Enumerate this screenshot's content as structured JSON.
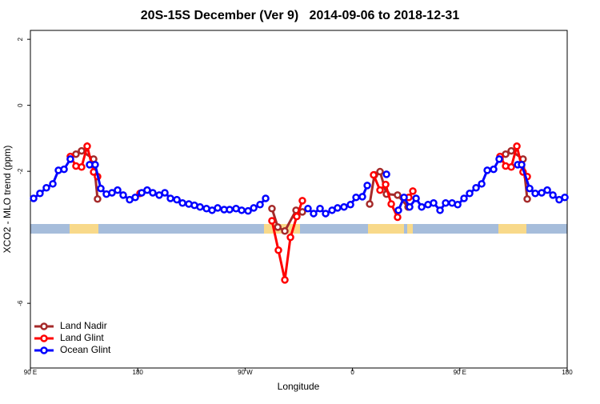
{
  "chart_data": {
    "type": "line",
    "title": "20S-15S December (Ver 9)   2014-09-06 to 2018-12-31",
    "xlabel": "Longitude",
    "ylabel": "XCO2 - MLO trend (ppm)",
    "xlim": [
      90,
      540
    ],
    "ylim": [
      -7.96,
      2.27
    ],
    "xticks": [
      {
        "value": 90,
        "label": "90 E"
      },
      180,
      {
        "value": 270,
        "label": "90 W"
      },
      {
        "value": 360,
        "label": "0"
      },
      {
        "value": 450,
        "label": "90 E"
      },
      {
        "value": 540,
        "label": "180"
      }
    ],
    "yticks": [
      -6,
      -2,
      0,
      2
    ],
    "legend": "bottomleft",
    "series": [
      {
        "name": "Land Nadir",
        "color": "#a52a2a",
        "x": [
          123.5,
          128.2,
          132.9,
          143.0,
          146.3,
          null,
          292.5,
          297.4,
          303.3,
          312.7,
          318.0,
          null,
          374.4,
          378.4,
          383.1,
          388.5,
          397.8,
          406.6,
          null,
          483.7,
          488.4,
          493.1,
          503.0,
          506.5
        ],
        "values": [
          -1.63,
          -1.48,
          -1.38,
          -1.63,
          -2.84,
          null,
          -3.13,
          -3.69,
          -3.81,
          -3.18,
          -3.23,
          null,
          -2.99,
          -2.11,
          -2.01,
          -2.69,
          -2.72,
          -3.08,
          null,
          -1.63,
          -1.48,
          -1.38,
          -1.63,
          -2.84
        ]
      },
      {
        "name": "Land Glint",
        "color": "#ff0000",
        "x": [
          123.5,
          128.2,
          132.9,
          137.6,
          143.0,
          146.3,
          null,
          181.9,
          null,
          292.5,
          297.9,
          303.3,
          308.0,
          313.3,
          318.0,
          null,
          377.7,
          383.1,
          387.8,
          392.5,
          397.8,
          null,
          407.2,
          410.6,
          null,
          483.7,
          488.4,
          493.1,
          497.8,
          503.0,
          506.5
        ],
        "values": [
          -1.55,
          -1.84,
          -1.87,
          -1.24,
          -2.02,
          -2.16,
          null,
          -2.67,
          null,
          -3.5,
          -4.39,
          -5.29,
          -4.0,
          -3.37,
          -2.89,
          null,
          -2.11,
          -2.57,
          -2.4,
          -2.99,
          -3.39,
          null,
          -2.79,
          -2.6,
          null,
          -1.55,
          -1.84,
          -1.87,
          -1.24,
          -2.02,
          -2.16
        ]
      },
      {
        "name": "Ocean Glint",
        "color": "#0000ff",
        "x": [
          92.7,
          98.0,
          103.4,
          108.8,
          113.5,
          118.2,
          123.5,
          null,
          139.6,
          144.3,
          149.0,
          153.7,
          158.4,
          163.1,
          167.8,
          173.2,
          177.9,
          183.3,
          187.9,
          192.6,
          198.0,
          202.7,
          207.4,
          212.8,
          217.5,
          222.8,
          227.5,
          232.2,
          237.6,
          242.3,
          247.0,
          252.4,
          257.0,
          262.4,
          267.1,
          272.5,
          277.2,
          282.5,
          287.2,
          null,
          322.7,
          327.4,
          332.8,
          337.5,
          342.9,
          347.5,
          352.9,
          358.3,
          363.0,
          368.3,
          372.4,
          null,
          388.5,
          null,
          398.5,
          403.2,
          407.9,
          413.3,
          418.0,
          423.3,
          428.0,
          433.4,
          438.1,
          443.5,
          448.2,
          453.5,
          458.2,
          463.6,
          468.3,
          473.0,
          478.3,
          483.0,
          null,
          498.5,
          501.8,
          508.5,
          513.2,
          518.6,
          523.3,
          528.0,
          533.3,
          538.0
        ],
        "values": [
          -2.82,
          -2.67,
          -2.5,
          -2.38,
          -1.97,
          -1.94,
          -1.63,
          null,
          -1.8,
          -1.8,
          -2.52,
          -2.69,
          -2.65,
          -2.57,
          -2.72,
          -2.86,
          -2.79,
          -2.65,
          -2.57,
          -2.65,
          -2.72,
          -2.65,
          -2.82,
          -2.86,
          -2.96,
          -2.99,
          -3.03,
          -3.08,
          -3.13,
          -3.18,
          -3.11,
          -3.16,
          -3.16,
          -3.13,
          -3.18,
          -3.2,
          -3.11,
          -3.01,
          -2.82,
          null,
          -3.13,
          -3.28,
          -3.13,
          -3.28,
          -3.18,
          -3.11,
          -3.08,
          -3.01,
          -2.79,
          -2.77,
          -2.43,
          null,
          -2.09,
          null,
          -3.18,
          -2.79,
          -3.08,
          -2.82,
          -3.08,
          -3.01,
          -2.96,
          -3.18,
          -2.96,
          -2.96,
          -3.01,
          -2.82,
          -2.67,
          -2.5,
          -2.38,
          -1.97,
          -1.94,
          -1.63,
          null,
          -1.8,
          -1.8,
          -2.52,
          -2.67,
          -2.65,
          -2.57,
          -2.72,
          -2.86,
          -2.79
        ]
      }
    ]
  }
}
